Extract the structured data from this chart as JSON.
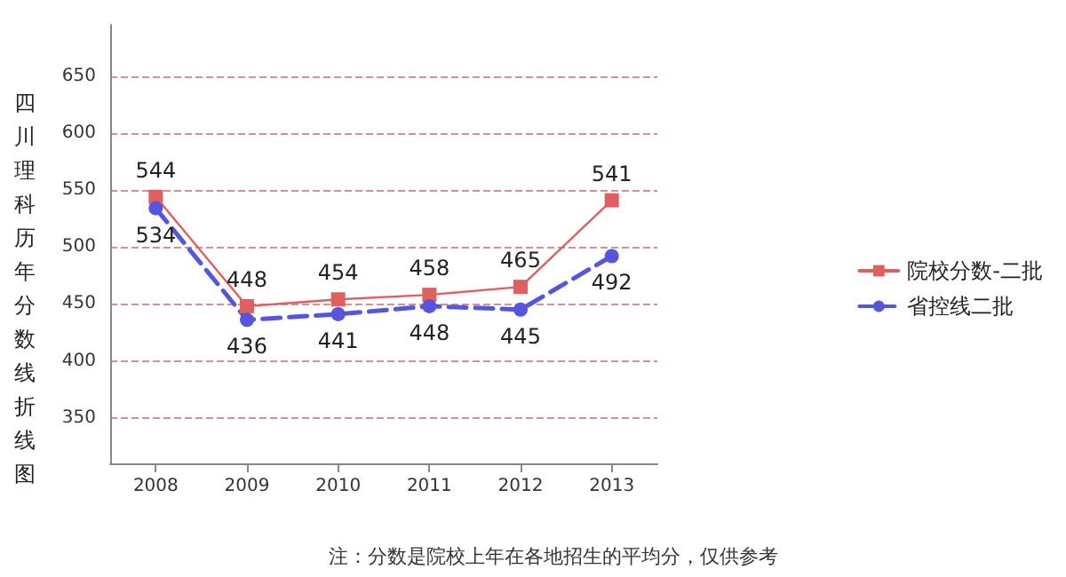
{
  "chart_data": {
    "type": "line",
    "ylabel": "四川理科历年分数线折线图",
    "categories": [
      "2008",
      "2009",
      "2010",
      "2011",
      "2012",
      "2013"
    ],
    "series": [
      {
        "name": "院校分数-二批",
        "color": "#e06060",
        "values": [
          544,
          448,
          454,
          458,
          465,
          541
        ],
        "marker": "square",
        "line_style": "solid"
      },
      {
        "name": "省控线二批",
        "color": "#5555dd",
        "values": [
          534,
          436,
          441,
          448,
          445,
          492
        ],
        "marker": "circle",
        "line_style": "dashed"
      }
    ],
    "ylim": [
      310,
      695
    ],
    "yticks": [
      350,
      400,
      450,
      500,
      550,
      600,
      650
    ],
    "grid": "y",
    "legend": "right",
    "data_labels": true,
    "annotations": [
      "注：分数是院校上年在各地招生的平均分，仅供参考"
    ]
  }
}
